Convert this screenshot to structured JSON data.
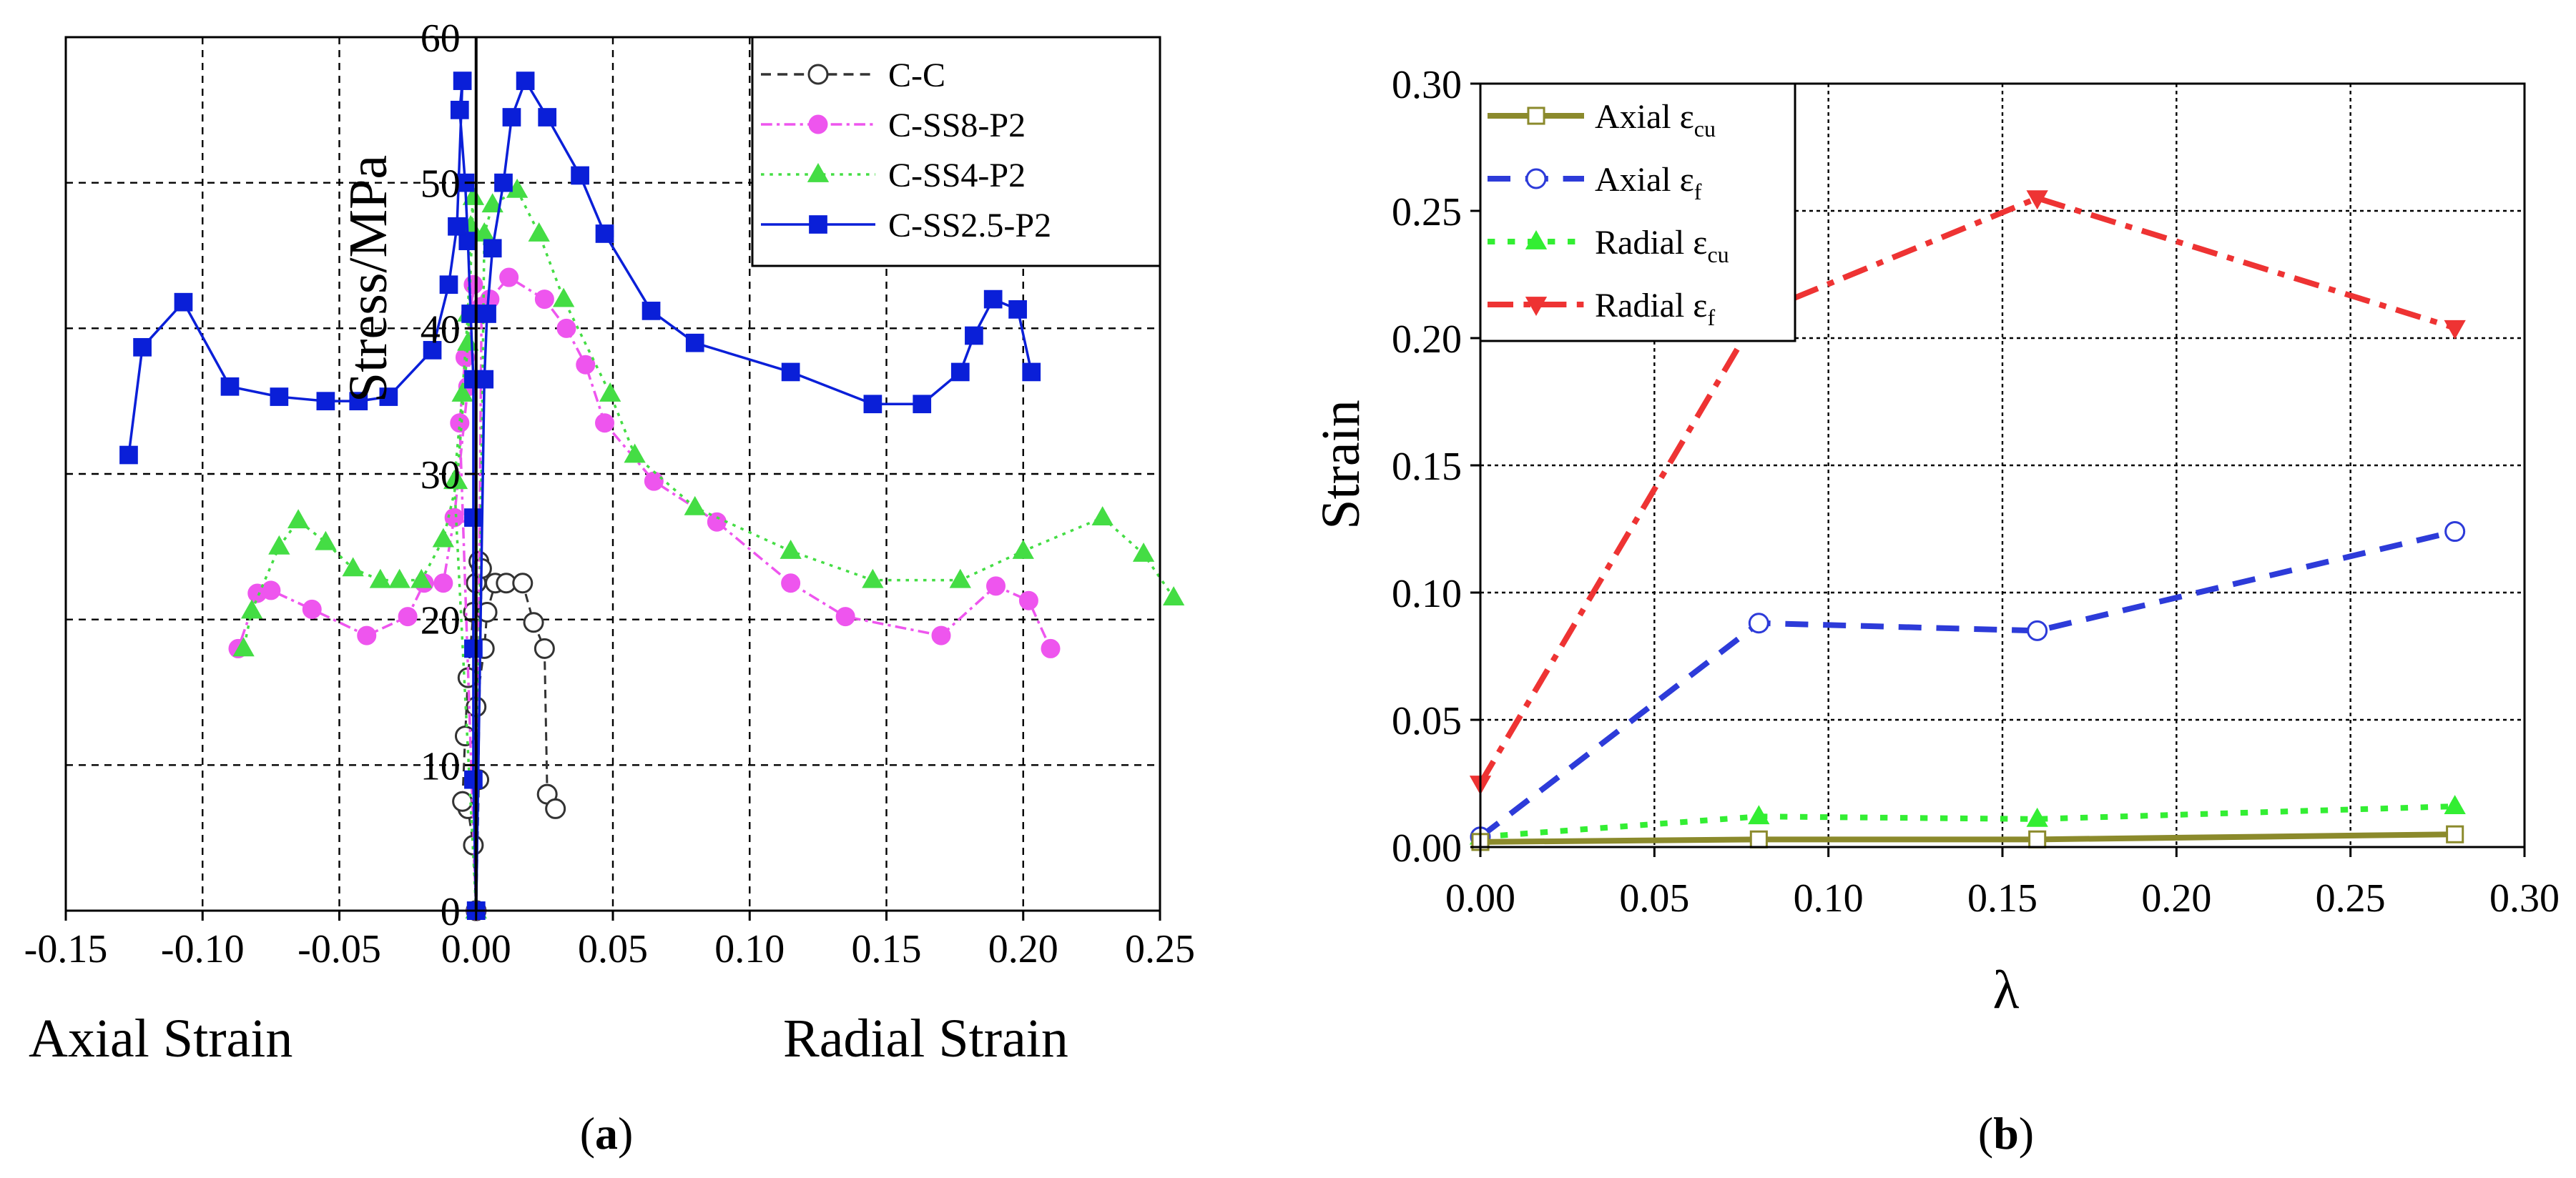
{
  "captions": {
    "a": "a",
    "b": "b"
  },
  "chart_data": [
    {
      "type": "line",
      "panel": "a",
      "title": "",
      "xlabel_left": "Axial Strain",
      "xlabel_right": "Radial Strain",
      "ylabel": "Stress/MPa",
      "xlim": [
        -0.15,
        0.25
      ],
      "ylim": [
        0,
        60
      ],
      "grid": true,
      "legend_position": "top-right",
      "x_tick_labels": [
        "-0.15",
        "-0.10",
        "-0.05",
        "0.00",
        "0.05",
        "0.10",
        "0.15",
        "0.20",
        "0.25"
      ],
      "y_tick_labels": [
        "0",
        "10",
        "20",
        "30",
        "40",
        "50",
        "60"
      ],
      "series": [
        {
          "name": "C-C",
          "color": "#333333",
          "line": "dashed",
          "marker": "open-circle",
          "segments": [
            [
              [
                0.0,
                0
              ],
              [
                -0.001,
                4.5
              ],
              [
                -0.003,
                7.0
              ],
              [
                -0.005,
                7.5
              ],
              [
                -0.004,
                12.0
              ],
              [
                -0.003,
                16.0
              ],
              [
                -0.001,
                20.5
              ],
              [
                0.0,
                22.5
              ],
              [
                0.001,
                24.0
              ],
              [
                0.002,
                23.5
              ],
              [
                0.0,
                0
              ]
            ],
            [
              [
                0.0,
                0
              ],
              [
                0.001,
                9.0
              ],
              [
                0.0,
                14.0
              ],
              [
                0.003,
                18.0
              ],
              [
                0.004,
                20.5
              ],
              [
                0.007,
                22.5
              ],
              [
                0.011,
                22.5
              ],
              [
                0.017,
                22.5
              ],
              [
                0.021,
                19.8
              ],
              [
                0.025,
                18.0
              ],
              [
                0.026,
                8.0
              ],
              [
                0.029,
                7.0
              ]
            ]
          ]
        },
        {
          "name": "C-SS8-P2",
          "color": "#ee55ee",
          "line": "dash-dot",
          "marker": "filled-circle",
          "segments": [
            [
              [
                0.0,
                0
              ],
              [
                -0.006,
                33.5
              ],
              [
                -0.004,
                38.0
              ],
              [
                -0.002,
                41.0
              ],
              [
                -0.001,
                43.0
              ],
              [
                -0.003,
                36.0
              ],
              [
                -0.008,
                27.0
              ],
              [
                -0.012,
                22.5
              ],
              [
                -0.019,
                22.5
              ],
              [
                -0.025,
                20.2
              ],
              [
                -0.04,
                18.9
              ],
              [
                -0.06,
                20.7
              ],
              [
                -0.075,
                22.0
              ],
              [
                -0.08,
                21.8
              ],
              [
                -0.087,
                18.0
              ]
            ],
            [
              [
                0.0,
                0
              ],
              [
                0.002,
                41.5
              ],
              [
                0.005,
                42.0
              ],
              [
                0.012,
                43.5
              ],
              [
                0.025,
                42.0
              ],
              [
                0.033,
                40.0
              ],
              [
                0.04,
                37.5
              ],
              [
                0.047,
                33.5
              ],
              [
                0.065,
                29.5
              ],
              [
                0.088,
                26.7
              ],
              [
                0.115,
                22.5
              ],
              [
                0.135,
                20.2
              ],
              [
                0.17,
                18.9
              ],
              [
                0.19,
                22.3
              ],
              [
                0.202,
                21.3
              ],
              [
                0.21,
                18.0
              ]
            ]
          ]
        },
        {
          "name": "C-SS4-P2",
          "color": "#44dd44",
          "line": "dotted",
          "marker": "filled-triangle",
          "segments": [
            [
              [
                0.0,
                0
              ],
              [
                -0.008,
                29.5
              ],
              [
                -0.005,
                35.5
              ],
              [
                -0.003,
                41.0
              ],
              [
                -0.002,
                47.0
              ],
              [
                -0.001,
                49.0
              ],
              [
                -0.003,
                39.0
              ],
              [
                -0.007,
                29.5
              ],
              [
                -0.012,
                25.5
              ],
              [
                -0.02,
                22.7
              ],
              [
                -0.028,
                22.7
              ],
              [
                -0.035,
                22.7
              ],
              [
                -0.045,
                23.5
              ],
              [
                -0.055,
                25.3
              ],
              [
                -0.065,
                26.8
              ],
              [
                -0.072,
                25.0
              ],
              [
                -0.082,
                20.6
              ],
              [
                -0.085,
                18.0
              ]
            ],
            [
              [
                0.0,
                0
              ],
              [
                0.003,
                46.5
              ],
              [
                0.006,
                48.5
              ],
              [
                0.015,
                49.5
              ],
              [
                0.023,
                46.5
              ],
              [
                0.032,
                42.0
              ],
              [
                0.049,
                35.5
              ],
              [
                0.058,
                31.3
              ],
              [
                0.08,
                27.7
              ],
              [
                0.115,
                24.7
              ],
              [
                0.145,
                22.7
              ],
              [
                0.177,
                22.7
              ],
              [
                0.2,
                24.7
              ],
              [
                0.229,
                27.0
              ],
              [
                0.244,
                24.5
              ],
              [
                0.255,
                21.5
              ]
            ]
          ]
        },
        {
          "name": "C-SS2.5-P2",
          "color": "#0a1fd8",
          "line": "solid",
          "marker": "filled-square",
          "segments": [
            [
              [
                0.0,
                0
              ],
              [
                -0.001,
                9.0
              ],
              [
                -0.001,
                18.0
              ],
              [
                -0.001,
                27.0
              ],
              [
                -0.001,
                36.5
              ],
              [
                -0.002,
                41.0
              ],
              [
                -0.003,
                46.0
              ],
              [
                -0.004,
                50.0
              ],
              [
                -0.006,
                55.0
              ],
              [
                -0.005,
                57.0
              ],
              [
                -0.007,
                47.0
              ],
              [
                -0.01,
                43.0
              ],
              [
                -0.016,
                38.5
              ],
              [
                -0.032,
                35.3
              ],
              [
                -0.043,
                35.0
              ],
              [
                -0.055,
                35.0
              ],
              [
                -0.072,
                35.3
              ],
              [
                -0.09,
                36.0
              ],
              [
                -0.107,
                41.8
              ],
              [
                -0.122,
                38.7
              ],
              [
                -0.127,
                31.3
              ]
            ],
            [
              [
                0.0,
                0
              ],
              [
                0.003,
                36.5
              ],
              [
                0.004,
                41.0
              ],
              [
                0.006,
                45.5
              ],
              [
                0.01,
                50.0
              ],
              [
                0.013,
                54.5
              ],
              [
                0.018,
                57.0
              ],
              [
                0.026,
                54.5
              ],
              [
                0.038,
                50.5
              ],
              [
                0.047,
                46.5
              ],
              [
                0.064,
                41.2
              ],
              [
                0.08,
                39.0
              ],
              [
                0.115,
                37.0
              ],
              [
                0.145,
                34.8
              ],
              [
                0.163,
                34.8
              ],
              [
                0.177,
                37.0
              ],
              [
                0.182,
                39.5
              ],
              [
                0.189,
                42.0
              ],
              [
                0.198,
                41.3
              ],
              [
                0.203,
                37.0
              ]
            ]
          ]
        }
      ]
    },
    {
      "type": "line",
      "panel": "b",
      "title": "",
      "xlabel": "λ",
      "ylabel": "Strain",
      "xlim": [
        0,
        0.3
      ],
      "ylim": [
        0,
        0.3
      ],
      "grid": true,
      "legend_position": "top-left",
      "x_tick_labels": [
        "0.00",
        "0.05",
        "0.10",
        "0.15",
        "0.20",
        "0.25",
        "0.30"
      ],
      "y_tick_labels": [
        "0.00",
        "0.05",
        "0.10",
        "0.15",
        "0.20",
        "0.25",
        "0.30"
      ],
      "x": [
        0.0,
        0.08,
        0.16,
        0.28
      ],
      "series": [
        {
          "name": "Axial εcu",
          "label_main": "Axial ε",
          "label_sub": "cu",
          "color": "#8b8a2c",
          "line": "solid",
          "marker": "open-square",
          "values": [
            0.002,
            0.003,
            0.003,
            0.005
          ]
        },
        {
          "name": "Axial εf",
          "label_main": "Axial ε",
          "label_sub": "f",
          "color": "#2d3bd9",
          "line": "dashed",
          "marker": "open-circle",
          "values": [
            0.004,
            0.088,
            0.085,
            0.124
          ]
        },
        {
          "name": "Radial εcu",
          "label_main": "Radial ε",
          "label_sub": "cu",
          "color": "#33ee33",
          "line": "dotted",
          "marker": "filled-triangle",
          "values": [
            0.004,
            0.012,
            0.011,
            0.016
          ]
        },
        {
          "name": "Radial εf",
          "label_main": "Radial ε",
          "label_sub": "f",
          "color": "#ee3333",
          "line": "dash-dot",
          "marker": "filled-triangle-down",
          "values": [
            0.025,
            0.21,
            0.255,
            0.204
          ]
        }
      ]
    }
  ]
}
